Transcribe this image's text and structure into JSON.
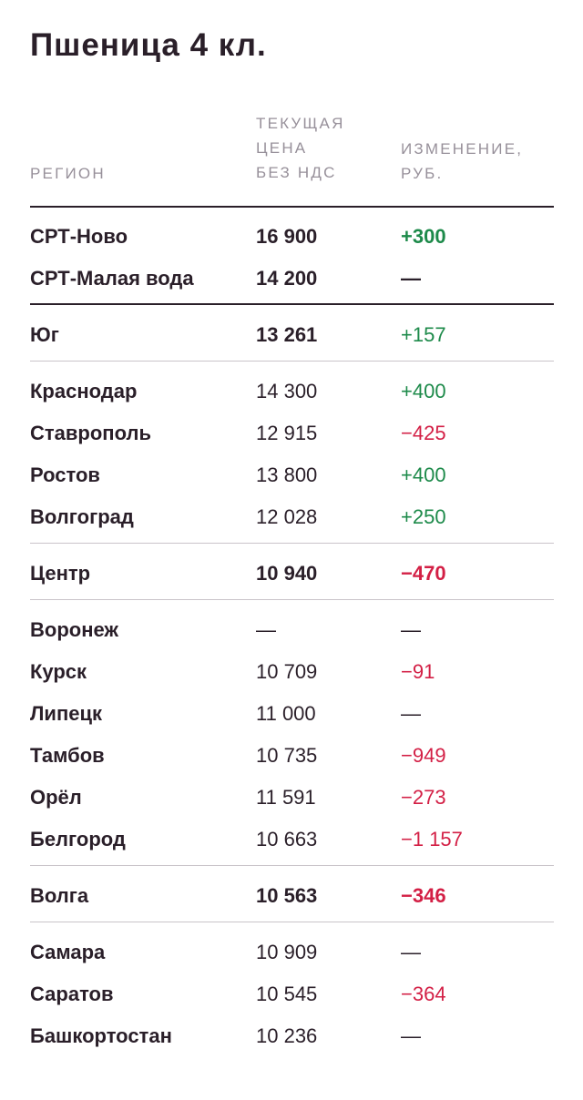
{
  "title": "Пшеница 4 кл.",
  "columns": {
    "region": "РЕГИОН",
    "price": [
      "ТЕКУЩАЯ",
      "ЦЕНА",
      "БЕЗ НДС"
    ],
    "change": [
      "ИЗМЕНЕНИЕ,",
      "РУБ."
    ]
  },
  "colors": {
    "positive": "#1d8a4a",
    "negative": "#d31f45",
    "text": "#2a1f29",
    "muted": "#97909a"
  },
  "rows": [
    {
      "region": "СРТ-Ново",
      "price": "16 900",
      "change": "+300",
      "trend": "pos",
      "bold": true
    },
    {
      "region": "СРТ-Малая вода",
      "price": "14 200",
      "change": "—",
      "trend": "neu",
      "bold": true
    },
    {
      "region": "Юг",
      "price": "13 261",
      "change": "+157",
      "trend": "pos",
      "bold": true,
      "change_bold": false
    },
    {
      "region": "Краснодар",
      "price": "14 300",
      "change": "+400",
      "trend": "pos",
      "bold": false
    },
    {
      "region": "Ставрополь",
      "price": "12 915",
      "change": "−425",
      "trend": "neg",
      "bold": false
    },
    {
      "region": "Ростов",
      "price": "13 800",
      "change": "+400",
      "trend": "pos",
      "bold": false
    },
    {
      "region": "Волгоград",
      "price": "12 028",
      "change": "+250",
      "trend": "pos",
      "bold": false
    },
    {
      "region": "Центр",
      "price": "10 940",
      "change": "−470",
      "trend": "neg",
      "bold": true
    },
    {
      "region": "Воронеж",
      "price": "—",
      "change": "—",
      "trend": "neu",
      "bold": false
    },
    {
      "region": "Курск",
      "price": "10 709",
      "change": "−91",
      "trend": "neg",
      "bold": false
    },
    {
      "region": "Липецк",
      "price": "11 000",
      "change": "—",
      "trend": "neu",
      "bold": false
    },
    {
      "region": "Тамбов",
      "price": "10 735",
      "change": "−949",
      "trend": "neg",
      "bold": false
    },
    {
      "region": "Орёл",
      "price": "11 591",
      "change": "−273",
      "trend": "neg",
      "bold": false
    },
    {
      "region": "Белгород",
      "price": "10 663",
      "change": "−1 157",
      "trend": "neg",
      "bold": false
    },
    {
      "region": "Волга",
      "price": "10 563",
      "change": "−346",
      "trend": "neg",
      "bold": true
    },
    {
      "region": "Самара",
      "price": "10 909",
      "change": "—",
      "trend": "neu",
      "bold": false
    },
    {
      "region": "Саратов",
      "price": "10 545",
      "change": "−364",
      "trend": "neg",
      "bold": false
    },
    {
      "region": "Башкортостан",
      "price": "10 236",
      "change": "—",
      "trend": "neu",
      "bold": false
    }
  ]
}
